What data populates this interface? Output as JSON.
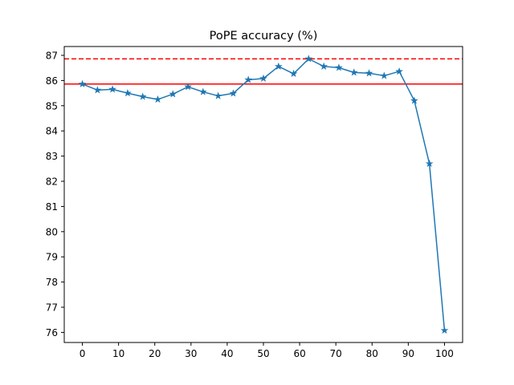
{
  "chart_data": {
    "type": "line",
    "title": "PoPE accuracy (%)",
    "xlabel": "",
    "ylabel": "",
    "xlim": [
      -5,
      105
    ],
    "ylim": [
      75.6,
      87.35
    ],
    "xticks": [
      0,
      10,
      20,
      30,
      40,
      50,
      60,
      70,
      80,
      90,
      100
    ],
    "yticks": [
      76,
      77,
      78,
      79,
      80,
      81,
      82,
      83,
      84,
      85,
      86,
      87
    ],
    "grid": false,
    "legend": "none",
    "series": [
      {
        "color": "#1f77b4",
        "marker": "star",
        "x": [
          0,
          4.17,
          8.33,
          12.5,
          16.67,
          20.83,
          25,
          29.17,
          33.33,
          37.5,
          41.67,
          45.83,
          50,
          54.17,
          58.33,
          62.5,
          66.67,
          70.83,
          75,
          79.17,
          83.33,
          87.5,
          91.67,
          95.83,
          100
        ],
        "y": [
          85.86,
          85.62,
          85.65,
          85.5,
          85.36,
          85.25,
          85.46,
          85.75,
          85.55,
          85.39,
          85.49,
          86.03,
          86.08,
          86.56,
          86.27,
          86.86,
          86.56,
          86.51,
          86.32,
          86.29,
          86.19,
          86.36,
          85.2,
          82.7,
          76.08
        ]
      }
    ],
    "reference_lines": [
      {
        "y": 85.86,
        "color": "#ff0000",
        "style": "solid"
      },
      {
        "y": 86.86,
        "color": "#ff0000",
        "style": "dashed"
      }
    ]
  }
}
